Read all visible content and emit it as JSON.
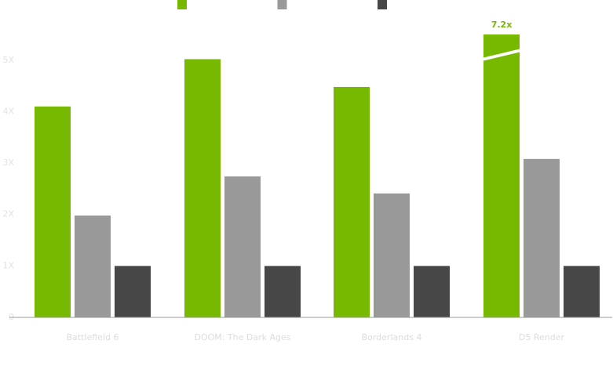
{
  "chart_data": {
    "type": "bar",
    "categories": [
      "Battlefield 6",
      "DOOM: The Dark Ages",
      "Borderlands 4",
      "D5 Render"
    ],
    "series": [
      {
        "color": "#76b900",
        "values": [
          4.1,
          5.02,
          4.48,
          7.2
        ],
        "value_labels": [
          null,
          null,
          null,
          "7.2x"
        ]
      },
      {
        "color": "#999999",
        "values": [
          1.98,
          2.74,
          2.41,
          3.08
        ]
      },
      {
        "color": "#474747",
        "values": [
          1,
          1,
          1,
          1
        ]
      }
    ],
    "ylim": [
      0,
      5.5
    ],
    "yticks": [
      0,
      {
        "value": 1,
        "label": "1X"
      },
      {
        "value": 2,
        "label": "2X"
      },
      {
        "value": 3,
        "label": "3X"
      },
      {
        "value": 4,
        "label": "4X"
      },
      {
        "value": 5,
        "label": "5X"
      }
    ],
    "grid": false
  }
}
